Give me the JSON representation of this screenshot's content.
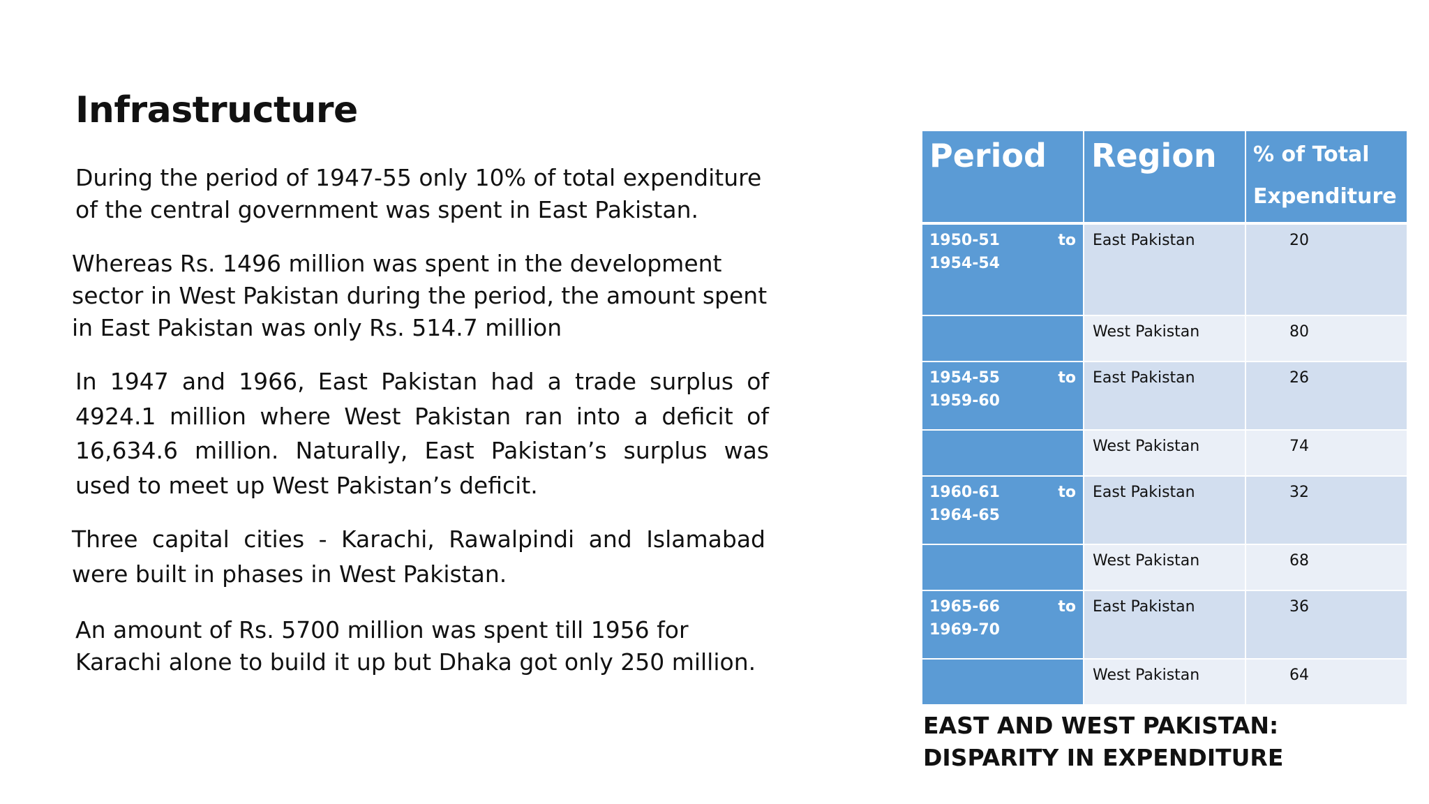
{
  "slide": {
    "title": "Infrastructure",
    "paragraphs": [
      "During the period of 1947-55 only 10% of total expenditure of the central government was spent in East Pakistan.",
      "Whereas Rs. 1496 million was spent in the development sector in West Pakistan during the period, the amount spent in East Pakistan was only Rs. 514.7 million",
      "In 1947 and 1966, East Pakistan had a trade surplus of 4924.1 million where West Pakistan ran into a deficit of 16,634.6 million. Naturally, East Pakistan’s surplus was used to meet up West Pakistan’s deficit.",
      "Three capital cities - Karachi, Rawalpindi and Islamabad were built in phases in West Pakistan.",
      "An amount  of Rs. 5700 million was spent till 1956 for Karachi alone to build it up but Dhaka got only 250 million."
    ]
  },
  "table": {
    "headers": {
      "period": "Period",
      "region": "Region",
      "percent": "% of Total Expenditure"
    },
    "rows": [
      {
        "period": "1950-51 to 1954-54",
        "region": "East Pakistan",
        "percent": "20"
      },
      {
        "period": "",
        "region": "West Pakistan",
        "percent": "80"
      },
      {
        "period": "1954-55 to 1959-60",
        "region": "East Pakistan",
        "percent": "26"
      },
      {
        "period": "",
        "region": "West Pakistan",
        "percent": "74"
      },
      {
        "period": "1960-61 to 1964-65",
        "region": "East Pakistan",
        "percent": "32"
      },
      {
        "period": "",
        "region": "West Pakistan",
        "percent": "68"
      },
      {
        "period": "1965-66 to 1969-70",
        "region": "East Pakistan",
        "percent": "36"
      },
      {
        "period": "",
        "region": "West Pakistan",
        "percent": "64"
      }
    ],
    "caption": "EAST AND WEST PAKISTAN: DISPARITY IN EXPENDITURE"
  },
  "colors": {
    "header_blue": "#5b9bd5",
    "east_row": "#d2deef",
    "west_row": "#eaeff7"
  }
}
